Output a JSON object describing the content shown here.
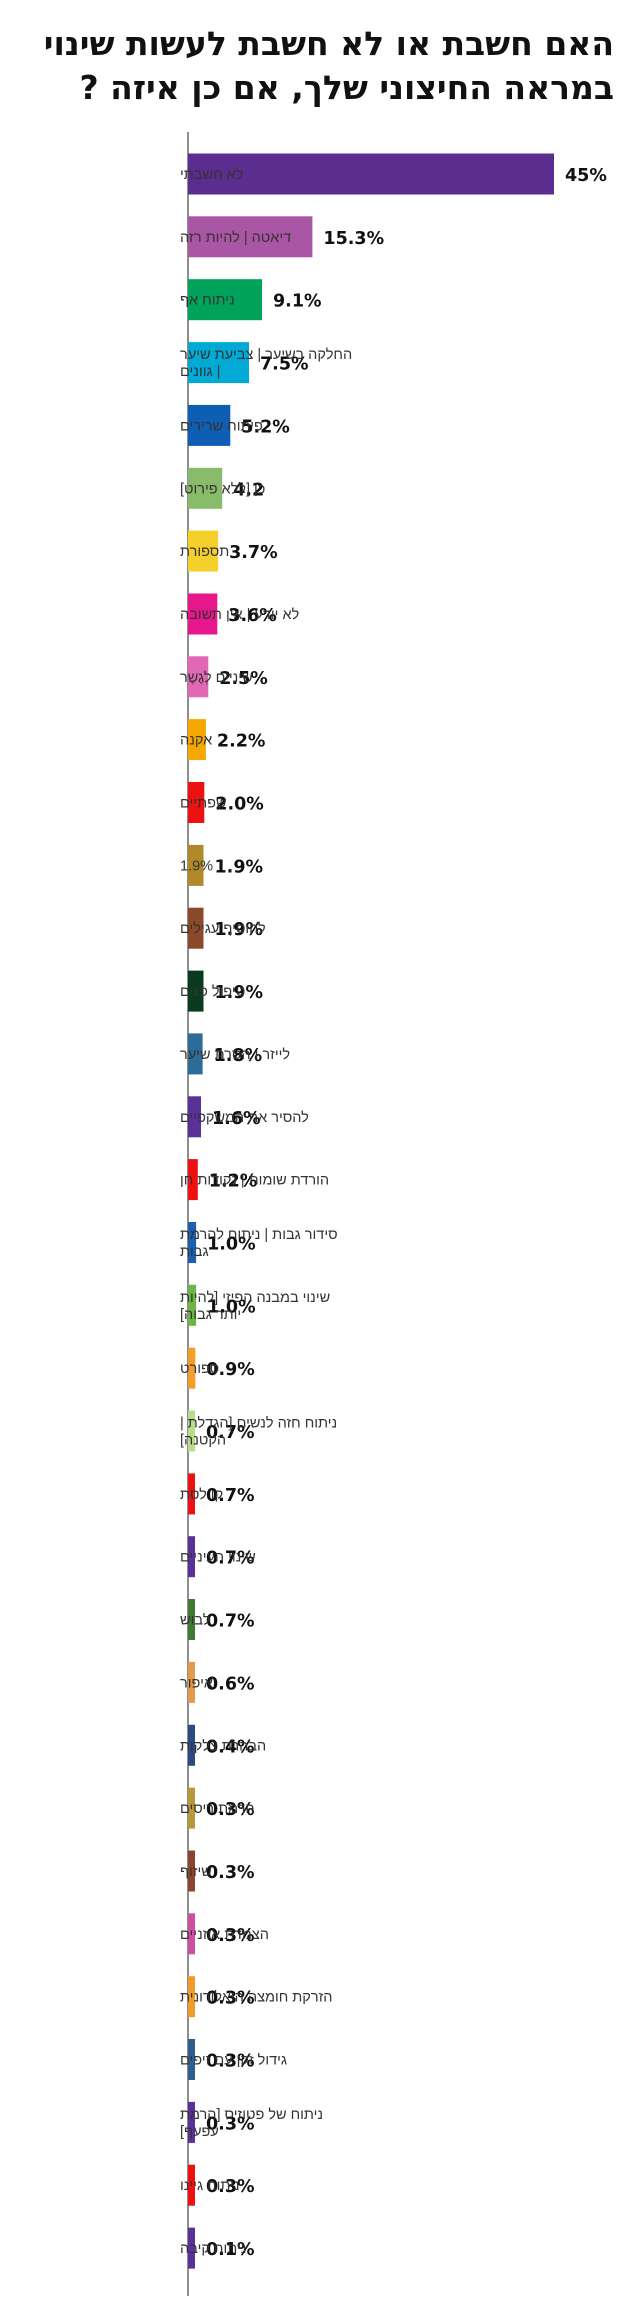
{
  "chart_data": {
    "type": "bar",
    "orientation": "horizontal",
    "title": "האם חשבת או לא חשבת לעשות שינוי במראה החיצוני שלך, אם כן איזה ?",
    "xlabel": "",
    "ylabel": "",
    "xlim": [
      0,
      45
    ],
    "grid": false,
    "categories": [
      "לא חשבתי",
      "דיאטה | להיות רזה",
      "ניתוח אף",
      "החלקה בשיער | צביעת שיער | גוונים",
      "פיתוח שרירים",
      "כן [ללא פירוט]",
      "תספורת",
      "לא יודע | אין תשובה",
      "שיניים לְגֶשֶר",
      "אקנה",
      "שפתיים",
      "1.9%",
      "להוסיף עגילים",
      "טיפול פנים",
      "לייזר ו הסרת שיער",
      "להסיר את המשקפיים",
      "הורדת שומות | נקודות חן",
      "סידור גבות | ניתוח להרמת גבות",
      "שינוי במבנה הפיזי [להיות יותר גבוה]",
      "ספורט",
      "ניתוח חזה לנשים [הגדלת | הקטנה]",
      "קו לסת",
      "שינוי העיניים",
      "לבוש",
      "איפור",
      "הבהרת צלקות",
      "הרמת ריסים",
      "שיזוף",
      "הצמדת אוזניים",
      "הזרקת חומצה היאלורונית",
      "גידול זקן עם זיפים",
      "ניתוח של פטוזיס [הרמת עפעף]",
      "ניתוח גיינו",
      "ניתוח קיבה"
    ],
    "values": [
      45,
      15.3,
      9.1,
      7.5,
      5.2,
      4.2,
      3.7,
      3.6,
      2.5,
      2.2,
      2.0,
      1.9,
      1.9,
      1.9,
      1.8,
      1.6,
      1.2,
      1.0,
      1.0,
      0.9,
      0.7,
      0.7,
      0.7,
      0.7,
      0.6,
      0.4,
      0.3,
      0.3,
      0.3,
      0.3,
      0.3,
      0.3,
      0.3,
      0.1
    ],
    "value_labels": [
      "45%",
      "15.3%",
      "9.1%",
      "7.5%",
      "5.2%",
      "4.2",
      "3.7%",
      "3.6%",
      "2.5%",
      "2.2%",
      "2.0%",
      "1.9%",
      "1.9%",
      "1.9%",
      "1.8%",
      "1.6%",
      "1.2%",
      "1.0%",
      "1.0%",
      "0.9%",
      "0.7%",
      "0.7%",
      "0.7%",
      "0.7%",
      "0.6%",
      "0.4%",
      "0.3%",
      "0.3%",
      "0.3%",
      "0.3%",
      "0.3%",
      "0.3%",
      "0.3%",
      "0.1%"
    ],
    "colors": [
      "#5b2d8e",
      "#a956a4",
      "#00a35c",
      "#00aad4",
      "#0e5fb3",
      "#88bb6a",
      "#f5cf2a",
      "#e8168c",
      "#e068b4",
      "#f7a800",
      "#ee1111",
      "#b08a28",
      "#8a4a2a",
      "#0b3b1f",
      "#2d6b99",
      "#5a3099",
      "#ee1111",
      "#1a5fb0",
      "#6cb444",
      "#f59d2a",
      "#b6dd8c",
      "#ee1111",
      "#5a3099",
      "#3e7a33",
      "#e59a4a",
      "#2c4a7e",
      "#b69a38",
      "#8a4530",
      "#cc4fa0",
      "#f29a2a",
      "#2f5f8e",
      "#5a3099",
      "#ee1111",
      "#5a3099"
    ]
  }
}
